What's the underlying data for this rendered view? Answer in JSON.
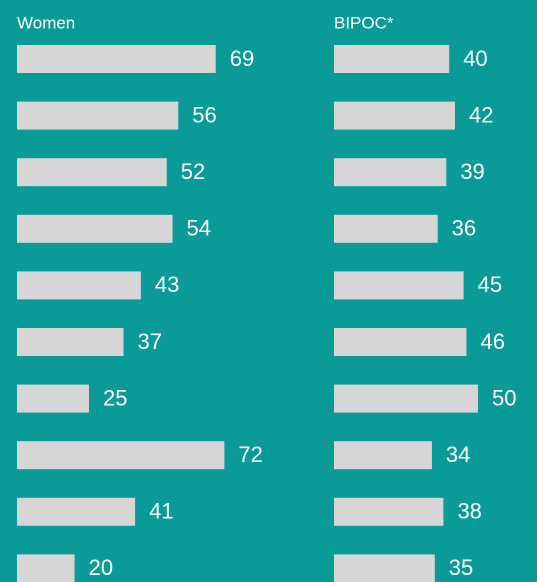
{
  "chart_data": [
    {
      "type": "bar",
      "orientation": "horizontal",
      "title": "Women",
      "categories": [
        null,
        null,
        null,
        null,
        null,
        null,
        null,
        null,
        null,
        null
      ],
      "values": [
        69,
        56,
        52,
        54,
        43,
        37,
        25,
        72,
        41,
        20
      ],
      "color": "#d6d6d6"
    },
    {
      "type": "bar",
      "orientation": "horizontal",
      "title": "BIPOC*",
      "categories": [
        null,
        null,
        null,
        null,
        null,
        null,
        null,
        null,
        null,
        null
      ],
      "values": [
        40,
        42,
        39,
        36,
        45,
        46,
        50,
        34,
        38,
        35
      ],
      "color": "#d6d6d6"
    }
  ]
}
